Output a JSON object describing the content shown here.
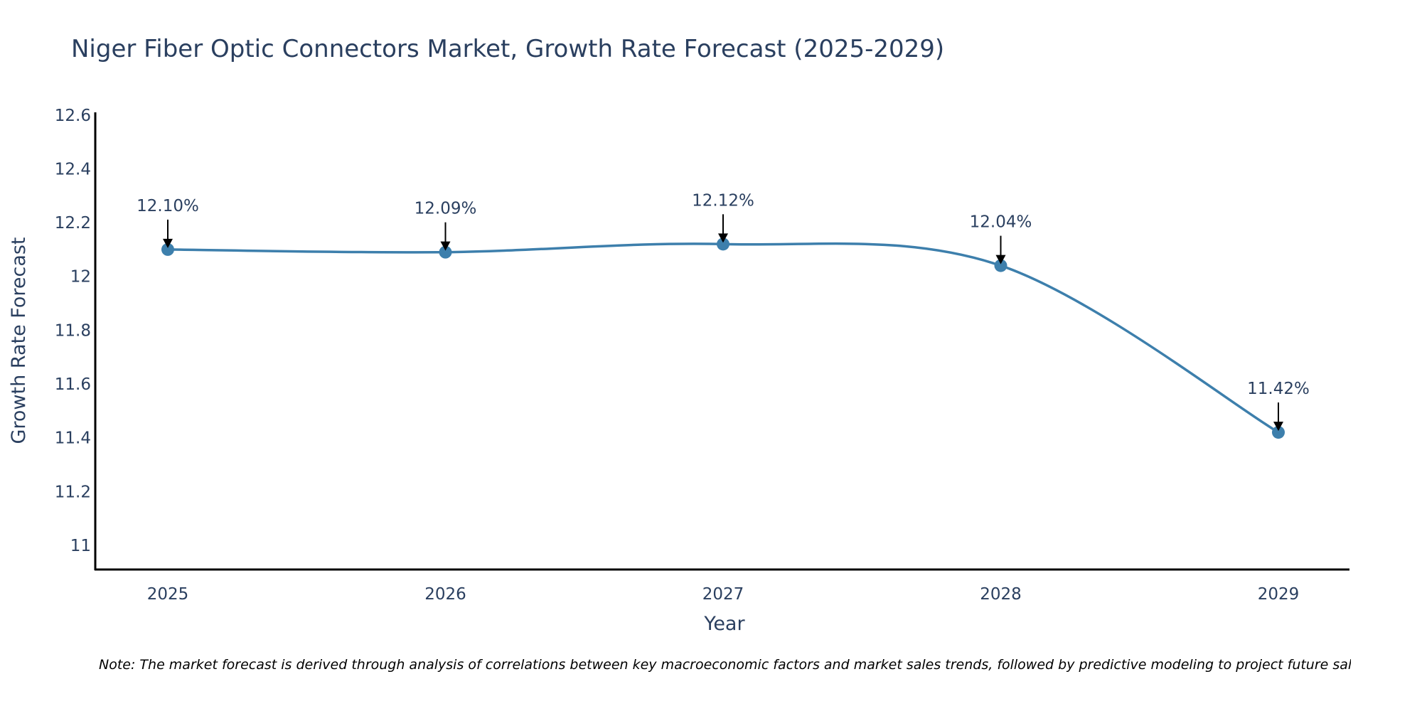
{
  "chart_data": {
    "type": "line",
    "title": "Niger Fiber Optic Connectors Market, Growth Rate Forecast (2025-2029)",
    "xlabel": "Year",
    "ylabel": "Growth Rate Forecast",
    "categories": [
      "2025",
      "2026",
      "2027",
      "2028",
      "2029"
    ],
    "series": [
      {
        "name": "Growth Rate Forecast",
        "values": [
          12.1,
          12.09,
          12.12,
          12.04,
          11.42
        ],
        "labels": [
          "12.10%",
          "12.09%",
          "12.12%",
          "12.04%",
          "11.42%"
        ],
        "color": "#3d7fac"
      }
    ],
    "ylim": [
      10.91,
      12.61
    ],
    "yticks": [
      11,
      11.2,
      11.4,
      11.6,
      11.8,
      12,
      12.2,
      12.4,
      12.6
    ],
    "ytick_labels": [
      "11",
      "11.2",
      "11.4",
      "11.6",
      "11.8",
      "12",
      "12.2",
      "12.4",
      "12.6"
    ],
    "grid": false,
    "legend": "none",
    "line_shape": "spline",
    "annotation_arrows": true,
    "note": "Note: The market forecast is derived through analysis of correlations between key macroeconomic factors and market sales trends, followed by predictive modeling to project future sales."
  },
  "colors": {
    "line": "#3d7fac",
    "marker": "#3d7fac",
    "axis": "#000000",
    "text": "#2a3f5f",
    "arrow": "#000000"
  }
}
